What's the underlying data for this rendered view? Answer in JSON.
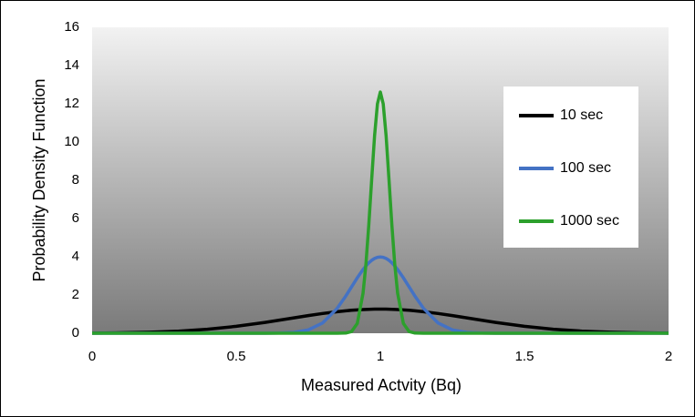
{
  "chart_data": {
    "type": "line",
    "xlabel": "Measured Actvity (Bq)",
    "ylabel": "Probability Density Function",
    "x": [
      0,
      0.1,
      0.2,
      0.3,
      0.4,
      0.5,
      0.6,
      0.65,
      0.7,
      0.75,
      0.8,
      0.85,
      0.88,
      0.9,
      0.92,
      0.94,
      0.95,
      0.96,
      0.97,
      0.98,
      0.99,
      1,
      1.01,
      1.02,
      1.03,
      1.04,
      1.05,
      1.06,
      1.08,
      1.1,
      1.12,
      1.15,
      1.2,
      1.25,
      1.3,
      1.35,
      1.4,
      1.5,
      1.6,
      1.7,
      1.8,
      1.9,
      2
    ],
    "series": [
      {
        "name": "10 sec",
        "color": "#000000",
        "values": [
          0.008,
          0.022,
          0.051,
          0.109,
          0.209,
          0.361,
          0.567,
          0.684,
          0.804,
          0.923,
          1.033,
          1.127,
          1.174,
          1.2,
          1.222,
          1.239,
          1.246,
          1.252,
          1.256,
          1.259,
          1.261,
          1.262,
          1.261,
          1.259,
          1.256,
          1.252,
          1.246,
          1.239,
          1.222,
          1.2,
          1.174,
          1.127,
          1.033,
          0.923,
          0.804,
          0.684,
          0.567,
          0.361,
          0.209,
          0.109,
          0.051,
          0.022,
          0.008
        ]
      },
      {
        "name": "100 sec",
        "color": "#4472c4",
        "values": [
          0,
          0,
          0,
          0,
          0,
          0,
          0.001,
          0.009,
          0.044,
          0.175,
          0.54,
          1.295,
          1.942,
          2.42,
          2.897,
          3.332,
          3.521,
          3.682,
          3.814,
          3.91,
          3.969,
          3.989,
          3.969,
          3.91,
          3.814,
          3.682,
          3.521,
          3.332,
          2.897,
          2.42,
          1.942,
          1.295,
          0.54,
          0.175,
          0.044,
          0.009,
          0.001,
          0,
          0,
          0,
          0,
          0,
          0
        ]
      },
      {
        "name": "1000 sec",
        "color": "#2ca02c",
        "values": [
          0,
          0,
          0,
          0,
          0,
          0,
          0,
          0,
          0,
          0,
          0,
          0,
          0.009,
          0.085,
          0.51,
          2.09,
          3.61,
          5.67,
          8.04,
          10.33,
          12.0,
          12.616,
          12.0,
          10.33,
          8.04,
          5.67,
          3.61,
          2.09,
          0.51,
          0.085,
          0.009,
          0,
          0,
          0,
          0,
          0,
          0,
          0,
          0,
          0,
          0,
          0,
          0
        ]
      }
    ],
    "xlim": [
      0,
      2
    ],
    "xticks": [
      0,
      0.5,
      1,
      1.5,
      2
    ],
    "ylim": [
      0,
      16
    ],
    "yticks": [
      0,
      2,
      4,
      6,
      8,
      10,
      12,
      14,
      16
    ],
    "grid": false,
    "legend": "right"
  }
}
